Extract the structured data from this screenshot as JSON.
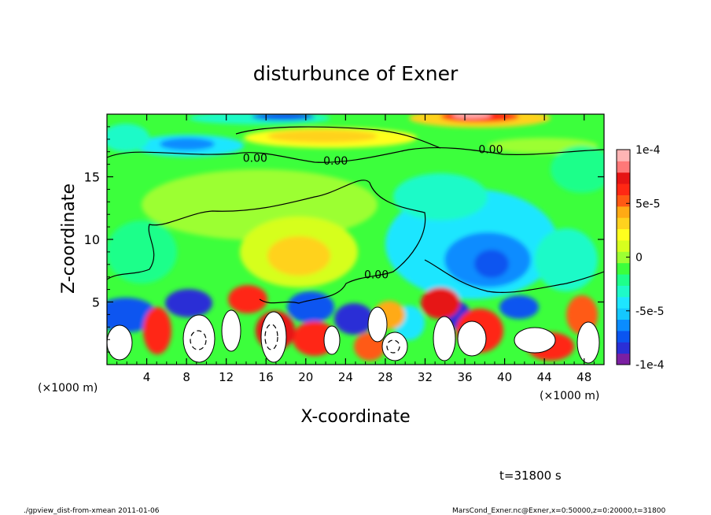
{
  "chart_data": {
    "type": "heatmap",
    "title": "disturbunce of Exner",
    "xlabel": "X-coordinate",
    "ylabel": "Z-coordinate",
    "x_unit": "(×1000 m)",
    "x_unit_right": "(×1000 m)",
    "xlim": [
      0,
      50
    ],
    "ylim": [
      0,
      20
    ],
    "x_ticks": [
      4,
      8,
      12,
      16,
      20,
      24,
      28,
      32,
      36,
      40,
      44,
      48
    ],
    "y_ticks": [
      5,
      10,
      15
    ],
    "colorbar": {
      "min": -0.0001,
      "max": 0.0001,
      "tick_values": [
        0.0001,
        5e-05,
        0,
        -5e-05,
        -0.0001
      ],
      "tick_labels": [
        "1e-4",
        "5e-5",
        "0",
        "-5e-5",
        "-1e-4"
      ],
      "colors": [
        "#7b1fa2",
        "#2a2fd6",
        "#0a55f0",
        "#0a8cff",
        "#14c8ff",
        "#1ee6ff",
        "#1efac8",
        "#1eff8a",
        "#3cff3c",
        "#9cff32",
        "#d6ff1e",
        "#ffff1e",
        "#ffd21e",
        "#ffaa14",
        "#ff5a14",
        "#ff2814",
        "#e61414",
        "#ff7878",
        "#ffb4b4"
      ]
    },
    "contour_labels": [
      {
        "text": "0.00",
        "x": 14.9,
        "z": 16.5
      },
      {
        "text": "0.00",
        "x": 23.0,
        "z": 16.3
      },
      {
        "text": "0.00",
        "x": 38.6,
        "z": 17.2
      },
      {
        "text": "0.00",
        "x": 27.1,
        "z": 7.2
      }
    ],
    "time_label": "t=31800 s"
  },
  "footer": {
    "left": "./gpview_dist-from-xmean  2011-01-06",
    "right": "MarsCond_Exner.nc@Exner,x=0:50000,z=0:20000,t=31800"
  }
}
